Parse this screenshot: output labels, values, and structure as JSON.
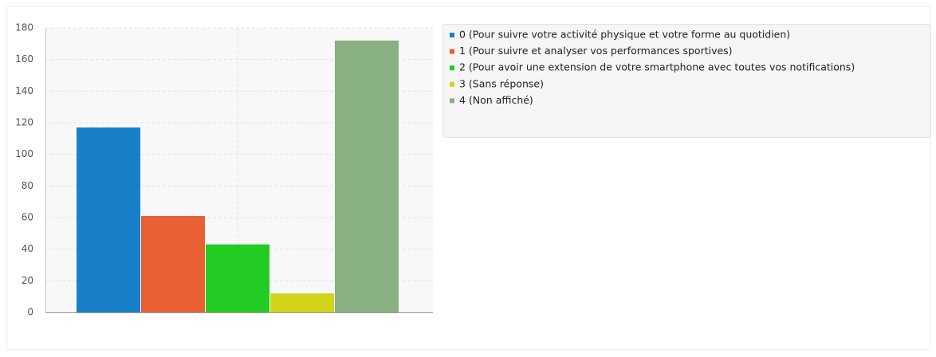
{
  "chart_data": {
    "type": "bar",
    "series": [
      {
        "name": "0 (Pour suivre votre activité physique et votre forme au quotidien)",
        "color": "#1780c8",
        "values": [
          117
        ]
      },
      {
        "name": "1 (Pour suivre et analyser vos performances sportives)",
        "color": "#e86033",
        "values": [
          61
        ]
      },
      {
        "name": "2 (Pour avoir une extension de votre smartphone avec toutes vos notifications)",
        "color": "#22cc22",
        "values": [
          43
        ]
      },
      {
        "name": "3 (Sans réponse)",
        "color": "#d2d41c",
        "values": [
          12
        ]
      },
      {
        "name": "4 (Non affiché)",
        "color": "#88b080",
        "values": [
          172
        ]
      }
    ],
    "ylim": [
      0,
      180
    ],
    "yticks": [
      0,
      20,
      40,
      60,
      80,
      100,
      120,
      140,
      160,
      180
    ],
    "grid": true
  }
}
